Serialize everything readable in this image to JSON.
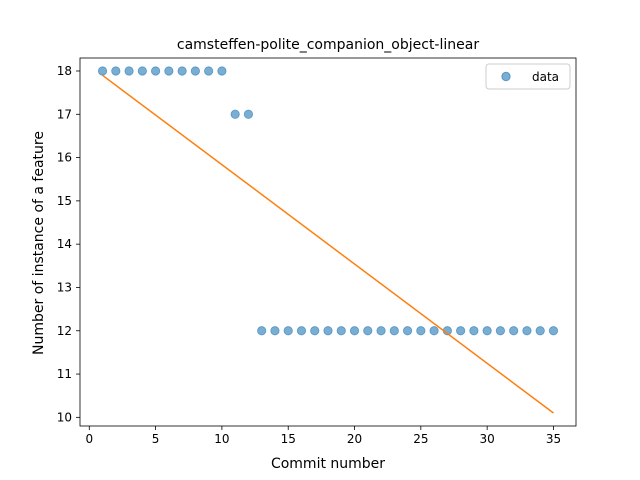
{
  "chart_data": {
    "type": "scatter",
    "title": "camsteffen-polite_companion_object-linear",
    "xlabel": "Commit number",
    "ylabel": "Number of instance of a feature",
    "xlim": [
      -0.7,
      36.7
    ],
    "ylim": [
      9.8,
      18.3
    ],
    "xticks": [
      0,
      5,
      10,
      15,
      20,
      25,
      30,
      35
    ],
    "yticks": [
      10,
      11,
      12,
      13,
      14,
      15,
      16,
      17,
      18
    ],
    "legend_position": "top-right",
    "grid": false,
    "series": [
      {
        "name": "data",
        "kind": "scatter",
        "color": "#1f77b4",
        "x": [
          1,
          2,
          3,
          4,
          5,
          6,
          7,
          8,
          9,
          10,
          11,
          12,
          13,
          14,
          15,
          16,
          17,
          18,
          19,
          20,
          21,
          22,
          23,
          24,
          25,
          26,
          27,
          28,
          29,
          30,
          31,
          32,
          33,
          34,
          35
        ],
        "y": [
          18,
          18,
          18,
          18,
          18,
          18,
          18,
          18,
          18,
          18,
          17,
          17,
          12,
          12,
          12,
          12,
          12,
          12,
          12,
          12,
          12,
          12,
          12,
          12,
          12,
          12,
          12,
          12,
          12,
          12,
          12,
          12,
          12,
          12,
          12
        ]
      },
      {
        "kind": "line",
        "color": "#ff7f0e",
        "x": [
          1,
          35
        ],
        "y": [
          17.9,
          10.1
        ]
      }
    ]
  }
}
